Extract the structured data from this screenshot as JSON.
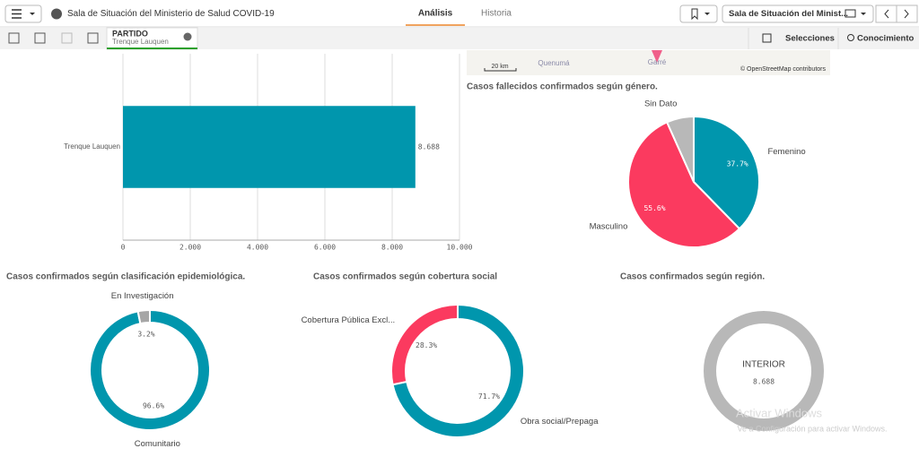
{
  "topbar": {
    "title": "Sala de Situación del Ministerio de Salud COVID-19",
    "tabs": [
      "Análisis",
      "Historia"
    ],
    "sheet": "Sala de Situación del Minist..."
  },
  "selections": {
    "field": "PARTIDO",
    "value": "Trenque Lauquen",
    "buttons": [
      "Selecciones",
      "Conocimiento"
    ]
  },
  "map": {
    "scale": "20 km",
    "places": [
      "Quenumá",
      "Garré"
    ],
    "attribution": "© OpenStreetMap contributors"
  },
  "chart_data": [
    {
      "type": "hbar",
      "categories": [
        "Trenque Lauquen"
      ],
      "values": [
        8688
      ],
      "value_labels": [
        "8.688"
      ],
      "color": "#0096ad",
      "xlim": [
        0,
        10000
      ],
      "xticks": [
        0,
        {
          "value": 2000,
          "label": "2.000"
        },
        {
          "value": 4000,
          "label": "4.000"
        },
        {
          "value": 6000,
          "label": "6.000"
        },
        {
          "value": 8000,
          "label": "8.000"
        },
        {
          "value": 10000,
          "label": "10.000"
        }
      ],
      "grid": true
    },
    {
      "type": "pie",
      "title": "Casos fallecidos confirmados según género.",
      "categories": [
        "Femenino",
        "Masculino",
        "Sin Dato"
      ],
      "values": [
        37.7,
        55.6,
        6.7
      ],
      "value_labels": [
        "37.7%",
        "55.6%",
        null
      ],
      "colors": [
        "#0096ad",
        "#fb3a5f",
        "#b8b8b8"
      ]
    },
    {
      "type": "donut",
      "title": "Casos confirmados según clasificación epidemiológica.",
      "categories": [
        "Comunitario",
        "En Investigación"
      ],
      "values": [
        96.6,
        3.2
      ],
      "value_labels": [
        "96.6%",
        "3.2%"
      ],
      "colors": [
        "#0096ad",
        "#a6a6a6"
      ]
    },
    {
      "type": "donut",
      "title": "Casos confirmados según cobertura social",
      "categories": [
        "Obra social/Prepaga",
        "Cobertura Pública Excl..."
      ],
      "values": [
        71.7,
        28.3
      ],
      "value_labels": [
        "71.7%",
        "28.3%"
      ],
      "colors": [
        "#0096ad",
        "#fb3a5f"
      ]
    },
    {
      "type": "donut",
      "title": "Casos confirmados según región.",
      "categories": [
        "INTERIOR"
      ],
      "values": [
        8688
      ],
      "value_labels": [
        "8.688"
      ],
      "colors": [
        "#b8b8b8"
      ],
      "center_label": true
    }
  ],
  "watermark": [
    "Activar Windows",
    "Ve a Configuración para activar Windows."
  ]
}
